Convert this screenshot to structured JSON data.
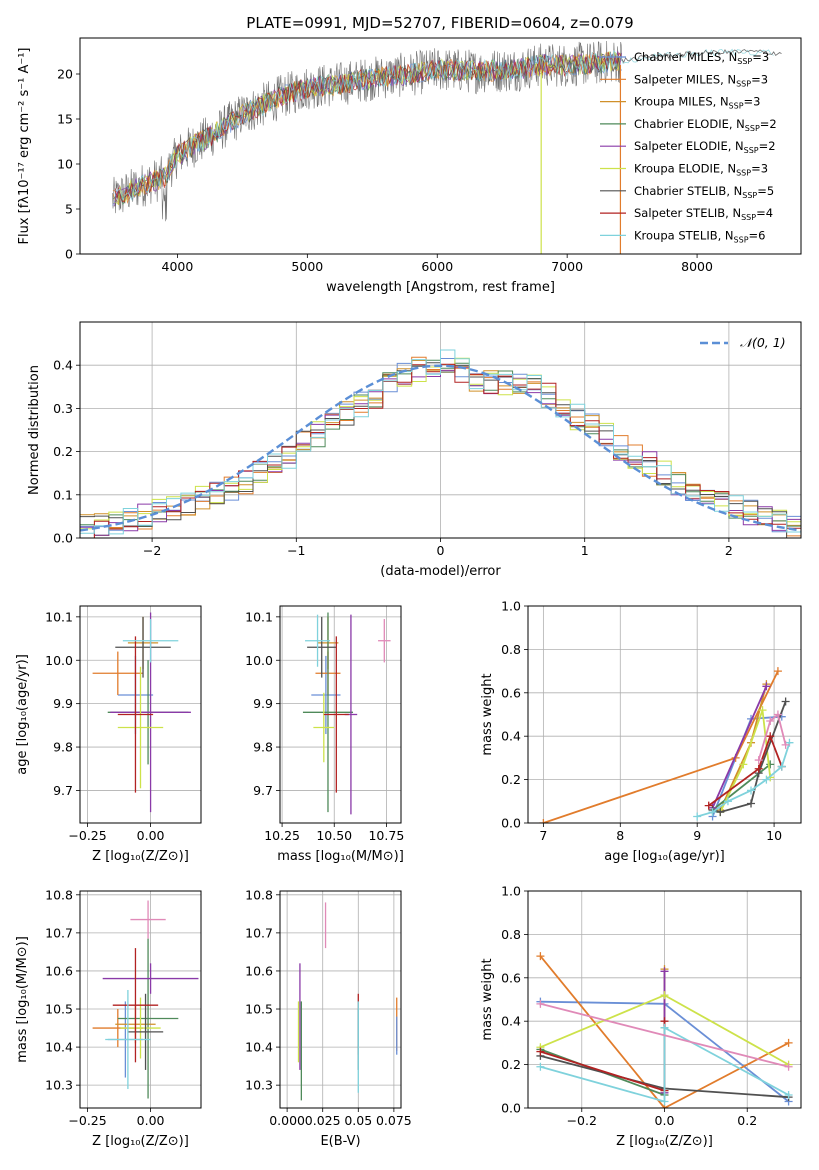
{
  "figure": {
    "title": "PLATE=0991, MJD=52707, FIBERID=0604, z=0.079"
  },
  "colors": {
    "Chabrier MILES": "#6a8fd6",
    "Salpeter MILES": "#e17c2c",
    "Kroupa MILES": "#d0902a",
    "Chabrier ELODIE": "#4f8a5a",
    "Salpeter ELODIE": "#8a3aa8",
    "Kroupa ELODIE": "#cde24a",
    "Chabrier STELIB": "#505050",
    "Salpeter STELIB": "#b22222",
    "Kroupa STELIB": "#7fd2dc",
    "pink": "#e08ab8",
    "gaussian": "#5b8fd6",
    "grid": "#b0b0b0"
  },
  "chart_data": [
    {
      "id": "spectrum",
      "type": "line",
      "xlabel": "wavelength [Angstrom, rest frame]",
      "ylabel": "Flux [fλ10⁻¹⁷ erg cm⁻² s⁻¹ A⁻¹]",
      "xlim": [
        3250,
        8800
      ],
      "ylim": [
        0,
        24
      ],
      "xticks": [
        4000,
        5000,
        6000,
        7000,
        8000
      ],
      "yticks": [
        0,
        5,
        10,
        15,
        20
      ],
      "grid": false,
      "legend_position": "right",
      "continuum": {
        "x": [
          3500,
          3700,
          3900,
          4000,
          4300,
          4500,
          4800,
          5000,
          5200,
          5500,
          5800,
          6000,
          6300,
          6600,
          6800,
          7000,
          7300,
          7600,
          8000,
          8400,
          8800
        ],
        "y": [
          6,
          7.5,
          8.5,
          11,
          13.5,
          15.5,
          17.5,
          18.5,
          18.8,
          19.5,
          20,
          20.5,
          20.3,
          20.5,
          21,
          21,
          21.3,
          21.8,
          22.3,
          22.5,
          22.2
        ]
      },
      "legend": [
        {
          "label": "Chabrier MILES, N",
          "sub": "SSP",
          "eq": "=3",
          "color_key": "Chabrier MILES"
        },
        {
          "label": "Salpeter MILES, N",
          "sub": "SSP",
          "eq": "=3",
          "color_key": "Salpeter MILES"
        },
        {
          "label": "Kroupa MILES, N",
          "sub": "SSP",
          "eq": "=3",
          "color_key": "Kroupa MILES"
        },
        {
          "label": "Chabrier ELODIE, N",
          "sub": "SSP",
          "eq": "=2",
          "color_key": "Chabrier ELODIE"
        },
        {
          "label": "Salpeter ELODIE, N",
          "sub": "SSP",
          "eq": "=2",
          "color_key": "Salpeter ELODIE"
        },
        {
          "label": "Kroupa ELODIE, N",
          "sub": "SSP",
          "eq": "=3",
          "color_key": "Kroupa ELODIE"
        },
        {
          "label": "Chabrier STELIB, N",
          "sub": "SSP",
          "eq": "=5",
          "color_key": "Chabrier STELIB"
        },
        {
          "label": "Salpeter STELIB, N",
          "sub": "SSP",
          "eq": "=4",
          "color_key": "Salpeter STELIB"
        },
        {
          "label": "Kroupa STELIB, N",
          "sub": "SSP",
          "eq": "=6",
          "color_key": "Kroupa STELIB"
        }
      ]
    },
    {
      "id": "residuals",
      "type": "bar",
      "xlabel": "(data-model)/error",
      "ylabel": "Normed distribution",
      "xlim": [
        -2.5,
        2.5
      ],
      "ylim": [
        0,
        0.5
      ],
      "xticks": [
        -2,
        -1,
        0,
        1,
        2
      ],
      "yticks": [
        0.0,
        0.1,
        0.2,
        0.3,
        0.4
      ],
      "grid": true,
      "legend_position": "top-right",
      "legend_label": "𝒩(0, 1)",
      "bin_edges_range": [
        -2.5,
        2.5
      ],
      "bin_width": 0.1,
      "base_values": [
        0.025,
        0.03,
        0.035,
        0.04,
        0.05,
        0.06,
        0.07,
        0.08,
        0.09,
        0.1,
        0.115,
        0.13,
        0.15,
        0.17,
        0.19,
        0.22,
        0.24,
        0.26,
        0.29,
        0.31,
        0.33,
        0.36,
        0.38,
        0.39,
        0.4,
        0.41,
        0.39,
        0.37,
        0.36,
        0.36,
        0.36,
        0.35,
        0.33,
        0.3,
        0.28,
        0.26,
        0.24,
        0.21,
        0.19,
        0.17,
        0.15,
        0.13,
        0.11,
        0.09,
        0.08,
        0.07,
        0.06,
        0.05,
        0.035,
        0.025
      ]
    },
    {
      "id": "age_vs_Z",
      "type": "scatter",
      "xlabel": "Z [log₁₀(Z/Z⊙)]",
      "ylabel": "age  [log₁₀(age/yr)]",
      "xlim": [
        -0.28,
        0.2
      ],
      "ylim": [
        9.625,
        10.125
      ],
      "xticks": [
        -0.25,
        0.0
      ],
      "yticks": [
        9.7,
        9.8,
        9.9,
        10.0,
        10.1
      ],
      "grid": true,
      "points": [
        {
          "series": "Chabrier MILES",
          "x": -0.06,
          "y": 9.92,
          "xerr": 0.07,
          "yerr": 0.09
        },
        {
          "series": "Salpeter MILES",
          "x": -0.13,
          "y": 9.97,
          "xerr": 0.1,
          "yerr": 0.05
        },
        {
          "series": "Kroupa MILES",
          "x": -0.03,
          "y": 10.04,
          "xerr": 0.06,
          "yerr": 0.06
        },
        {
          "series": "Chabrier ELODIE",
          "x": -0.01,
          "y": 9.88,
          "xerr": 0.16,
          "yerr": 0.12
        },
        {
          "series": "Salpeter ELODIE",
          "x": 0.0,
          "y": 9.88,
          "xerr": 0.16,
          "yerr": 0.23
        },
        {
          "series": "Kroupa ELODIE",
          "x": -0.04,
          "y": 9.845,
          "xerr": 0.09,
          "yerr": 0.14
        },
        {
          "series": "Chabrier STELIB",
          "x": -0.03,
          "y": 10.03,
          "xerr": 0.11,
          "yerr": 0.07
        },
        {
          "series": "Salpeter STELIB",
          "x": -0.06,
          "y": 9.875,
          "xerr": 0.07,
          "yerr": 0.18
        },
        {
          "series": "Kroupa STELIB",
          "x": 0.0,
          "y": 10.045,
          "xerr": 0.11,
          "yerr": 0.05
        }
      ]
    },
    {
      "id": "age_vs_mass",
      "type": "scatter",
      "xlabel": "mass [log₁₀(M/M⊙)]",
      "ylabel": "",
      "xlim": [
        10.24,
        10.82
      ],
      "ylim": [
        9.625,
        10.125
      ],
      "xticks": [
        10.25,
        10.5,
        10.75
      ],
      "yticks": [
        9.7,
        9.8,
        9.9,
        10.0,
        10.1
      ],
      "grid": true,
      "points": [
        {
          "series": "Chabrier MILES",
          "x": 10.46,
          "y": 9.92,
          "xerr": 0.07,
          "yerr": 0.09
        },
        {
          "series": "Salpeter MILES",
          "x": 10.47,
          "y": 9.97,
          "xerr": 0.06,
          "yerr": 0.05
        },
        {
          "series": "Kroupa MILES",
          "x": 10.47,
          "y": 10.04,
          "xerr": 0.05,
          "yerr": 0.06
        },
        {
          "series": "Chabrier ELODIE",
          "x": 10.47,
          "y": 9.88,
          "xerr": 0.12,
          "yerr": 0.23
        },
        {
          "series": "Salpeter ELODIE",
          "x": 10.58,
          "y": 9.875,
          "xerr": 0.03,
          "yerr": 0.23
        },
        {
          "series": "Kroupa ELODIE",
          "x": 10.45,
          "y": 9.845,
          "xerr": 0.05,
          "yerr": 0.08
        },
        {
          "series": "Chabrier STELIB",
          "x": 10.44,
          "y": 10.03,
          "xerr": 0.07,
          "yerr": 0.07
        },
        {
          "series": "Salpeter STELIB",
          "x": 10.51,
          "y": 9.875,
          "xerr": 0.06,
          "yerr": 0.18
        },
        {
          "series": "Kroupa STELIB",
          "x": 10.42,
          "y": 10.045,
          "xerr": 0.06,
          "yerr": 0.06
        },
        {
          "series": "pink",
          "x": 10.74,
          "y": 10.045,
          "xerr": 0.03,
          "yerr": 0.05
        }
      ]
    },
    {
      "id": "mass_weight_vs_age",
      "type": "line",
      "xlabel": "age  [log₁₀(age/yr)]",
      "ylabel": "mass weight",
      "xlim": [
        6.8,
        10.35
      ],
      "ylim": [
        0,
        1
      ],
      "xticks": [
        7,
        8,
        9,
        10
      ],
      "yticks": [
        0.0,
        0.2,
        0.4,
        0.6,
        0.8,
        1.0
      ],
      "grid": true,
      "series": [
        {
          "name": "Chabrier MILES",
          "x": [
            9.2,
            9.7,
            10.1
          ],
          "y": [
            0.03,
            0.48,
            0.49
          ]
        },
        {
          "name": "Salpeter MILES",
          "x": [
            7.0,
            9.5,
            10.05
          ],
          "y": [
            0.0,
            0.3,
            0.7
          ]
        },
        {
          "name": "Kroupa MILES",
          "x": [
            9.3,
            9.7,
            9.9
          ],
          "y": [
            0.06,
            0.37,
            0.64
          ]
        },
        {
          "name": "Chabrier ELODIE",
          "x": [
            9.2,
            9.95
          ],
          "y": [
            0.06,
            0.27
          ]
        },
        {
          "name": "Salpeter ELODIE",
          "x": [
            9.2,
            9.9
          ],
          "y": [
            0.07,
            0.63
          ]
        },
        {
          "name": "Kroupa ELODIE",
          "x": [
            9.3,
            9.6,
            9.85,
            9.95
          ],
          "y": [
            0.05,
            0.27,
            0.52,
            0.21
          ]
        },
        {
          "name": "Chabrier STELIB",
          "x": [
            9.2,
            9.3,
            9.7,
            9.8,
            10.15
          ],
          "y": [
            0.06,
            0.05,
            0.09,
            0.23,
            0.56
          ]
        },
        {
          "name": "Salpeter STELIB",
          "x": [
            9.15,
            9.8,
            9.95,
            10.1
          ],
          "y": [
            0.08,
            0.25,
            0.4,
            0.26
          ]
        },
        {
          "name": "Kroupa STELIB",
          "x": [
            9.0,
            9.2,
            9.4,
            9.7,
            9.9,
            10.1,
            10.2
          ],
          "y": [
            0.03,
            0.05,
            0.1,
            0.15,
            0.2,
            0.26,
            0.37
          ]
        },
        {
          "name": "pink",
          "x": [
            9.8,
            9.95,
            10.05,
            10.15
          ],
          "y": [
            0.29,
            0.47,
            0.5,
            0.36
          ]
        }
      ]
    },
    {
      "id": "mass_vs_Z",
      "type": "scatter",
      "xlabel": "Z [log₁₀(Z/Z⊙)]",
      "ylabel": "mass [log₁₀(M/M⊙)]",
      "xlim": [
        -0.28,
        0.2
      ],
      "ylim": [
        10.24,
        10.81
      ],
      "xticks": [
        -0.25,
        0.0
      ],
      "yticks": [
        10.3,
        10.4,
        10.5,
        10.6,
        10.7,
        10.8
      ],
      "grid": true,
      "points": [
        {
          "series": "Chabrier MILES",
          "x": -0.1,
          "y": 10.42,
          "xerr": 0.07,
          "yerr": 0.1
        },
        {
          "series": "Salpeter MILES",
          "x": -0.13,
          "y": 10.45,
          "xerr": 0.1,
          "yerr": 0.05
        },
        {
          "series": "Kroupa MILES",
          "x": -0.06,
          "y": 10.46,
          "xerr": 0.08,
          "yerr": 0.05
        },
        {
          "series": "Chabrier ELODIE",
          "x": -0.01,
          "y": 10.475,
          "xerr": 0.12,
          "yerr": 0.21
        },
        {
          "series": "Salpeter ELODIE",
          "x": 0.0,
          "y": 10.58,
          "xerr": 0.19,
          "yerr": 0.04
        },
        {
          "series": "Kroupa ELODIE",
          "x": -0.04,
          "y": 10.45,
          "xerr": 0.08,
          "yerr": 0.08
        },
        {
          "series": "Chabrier STELIB",
          "x": -0.02,
          "y": 10.44,
          "xerr": 0.07,
          "yerr": 0.1
        },
        {
          "series": "Salpeter STELIB",
          "x": -0.06,
          "y": 10.51,
          "xerr": 0.09,
          "yerr": 0.15
        },
        {
          "series": "Kroupa STELIB",
          "x": -0.09,
          "y": 10.42,
          "xerr": 0.09,
          "yerr": 0.13
        },
        {
          "series": "pink",
          "x": -0.01,
          "y": 10.735,
          "xerr": 0.07,
          "yerr": 0.05
        }
      ]
    },
    {
      "id": "mass_vs_ebv",
      "type": "scatter",
      "xlabel": "E(B-V)",
      "ylabel": "",
      "xlim": [
        -0.005,
        0.08
      ],
      "ylim": [
        10.24,
        10.81
      ],
      "xticks": [
        0.0,
        0.025,
        0.05,
        0.075
      ],
      "yticks": [
        10.3,
        10.4,
        10.5,
        10.6,
        10.7,
        10.8
      ],
      "grid": true,
      "points": [
        {
          "series": "Salpeter ELODIE",
          "x": 0.009,
          "y": 10.48,
          "xerr": 0,
          "yerr": 0.14
        },
        {
          "series": "Chabrier ELODIE",
          "x": 0.01,
          "y": 10.39,
          "xerr": 0,
          "yerr": 0.13
        },
        {
          "series": "Kroupa ELODIE",
          "x": 0.008,
          "y": 10.44,
          "xerr": 0,
          "yerr": 0.08
        },
        {
          "series": "pink",
          "x": 0.027,
          "y": 10.72,
          "xerr": 0,
          "yerr": 0.06
        },
        {
          "series": "Salpeter STELIB",
          "x": 0.05,
          "y": 10.46,
          "xerr": 0,
          "yerr": 0.08
        },
        {
          "series": "Chabrier STELIB",
          "x": 0.05,
          "y": 10.42,
          "xerr": 0,
          "yerr": 0.08
        },
        {
          "series": "Kroupa STELIB",
          "x": 0.05,
          "y": 10.4,
          "xerr": 0,
          "yerr": 0.12
        },
        {
          "series": "Salpeter MILES",
          "x": 0.077,
          "y": 10.46,
          "xerr": 0,
          "yerr": 0.07
        },
        {
          "series": "Chabrier MILES",
          "x": 0.077,
          "y": 10.43,
          "xerr": 0,
          "yerr": 0.05
        }
      ]
    },
    {
      "id": "mass_weight_vs_Z",
      "type": "line",
      "xlabel": "Z [log₁₀(Z/Z⊙)]",
      "ylabel": "mass weight",
      "xlim": [
        -0.33,
        0.33
      ],
      "ylim": [
        0,
        1
      ],
      "xticks": [
        -0.2,
        0.0,
        0.2
      ],
      "yticks": [
        0.0,
        0.2,
        0.4,
        0.6,
        0.8,
        1.0
      ],
      "grid": true,
      "series": [
        {
          "name": "Chabrier MILES",
          "x": [
            -0.3,
            0.0,
            0.3
          ],
          "y": [
            0.49,
            0.48,
            0.03
          ]
        },
        {
          "name": "Salpeter MILES",
          "x": [
            -0.3,
            0.0,
            0.3
          ],
          "y": [
            0.7,
            0.0,
            0.3
          ]
        },
        {
          "name": "Kroupa MILES",
          "x": [
            0.0,
            0.0
          ],
          "y": [
            0.64,
            0.37
          ]
        },
        {
          "name": "Chabrier ELODIE",
          "x": [
            -0.3,
            0.0
          ],
          "y": [
            0.27,
            0.06
          ]
        },
        {
          "name": "Salpeter ELODIE",
          "x": [
            0.0,
            0.0
          ],
          "y": [
            0.63,
            0.07
          ]
        },
        {
          "name": "Kroupa ELODIE",
          "x": [
            -0.3,
            0.0,
            0.3
          ],
          "y": [
            0.28,
            0.52,
            0.2
          ]
        },
        {
          "name": "Chabrier STELIB",
          "x": [
            -0.3,
            0.0,
            0.3
          ],
          "y": [
            0.24,
            0.09,
            0.05
          ]
        },
        {
          "name": "Salpeter STELIB",
          "x": [
            -0.3,
            0.0,
            0.0
          ],
          "y": [
            0.26,
            0.08,
            0.4
          ]
        },
        {
          "name": "Kroupa STELIB",
          "x": [
            -0.3,
            0.0,
            0.0,
            0.3
          ],
          "y": [
            0.19,
            0.03,
            0.37,
            0.06
          ]
        },
        {
          "name": "pink",
          "x": [
            -0.3,
            0.3
          ],
          "y": [
            0.48,
            0.19
          ]
        }
      ]
    }
  ]
}
